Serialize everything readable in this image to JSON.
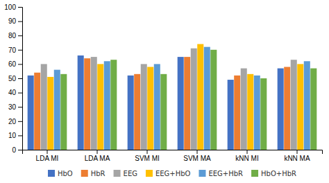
{
  "chart_data": {
    "type": "bar",
    "categories": [
      "LDA MI",
      "LDA MA",
      "SVM MI",
      "SVM MA",
      "kNN MI",
      "kNN MA"
    ],
    "series": [
      {
        "name": "HbO",
        "color": "#4472C4",
        "values": [
          52,
          66,
          52,
          65,
          49,
          57
        ]
      },
      {
        "name": "HbR",
        "color": "#ED7D31",
        "values": [
          54,
          64,
          53,
          65,
          52,
          58
        ]
      },
      {
        "name": "EEG",
        "color": "#A5A5A5",
        "values": [
          60,
          65,
          60,
          71,
          57,
          63
        ]
      },
      {
        "name": "EEG+HbO",
        "color": "#FFC000",
        "values": [
          51,
          60,
          58,
          74,
          53,
          60
        ]
      },
      {
        "name": "EEG+HbR",
        "color": "#5B9BD5",
        "values": [
          56,
          62,
          60,
          72,
          52,
          62
        ]
      },
      {
        "name": "HbO+HbR",
        "color": "#70AD47",
        "values": [
          53,
          63,
          53,
          70,
          50,
          57
        ]
      }
    ],
    "ylim": [
      0,
      100
    ],
    "yticks": [
      0,
      10,
      20,
      30,
      40,
      50,
      60,
      70,
      80,
      90,
      100
    ],
    "grid": false,
    "legend": "bottom"
  }
}
